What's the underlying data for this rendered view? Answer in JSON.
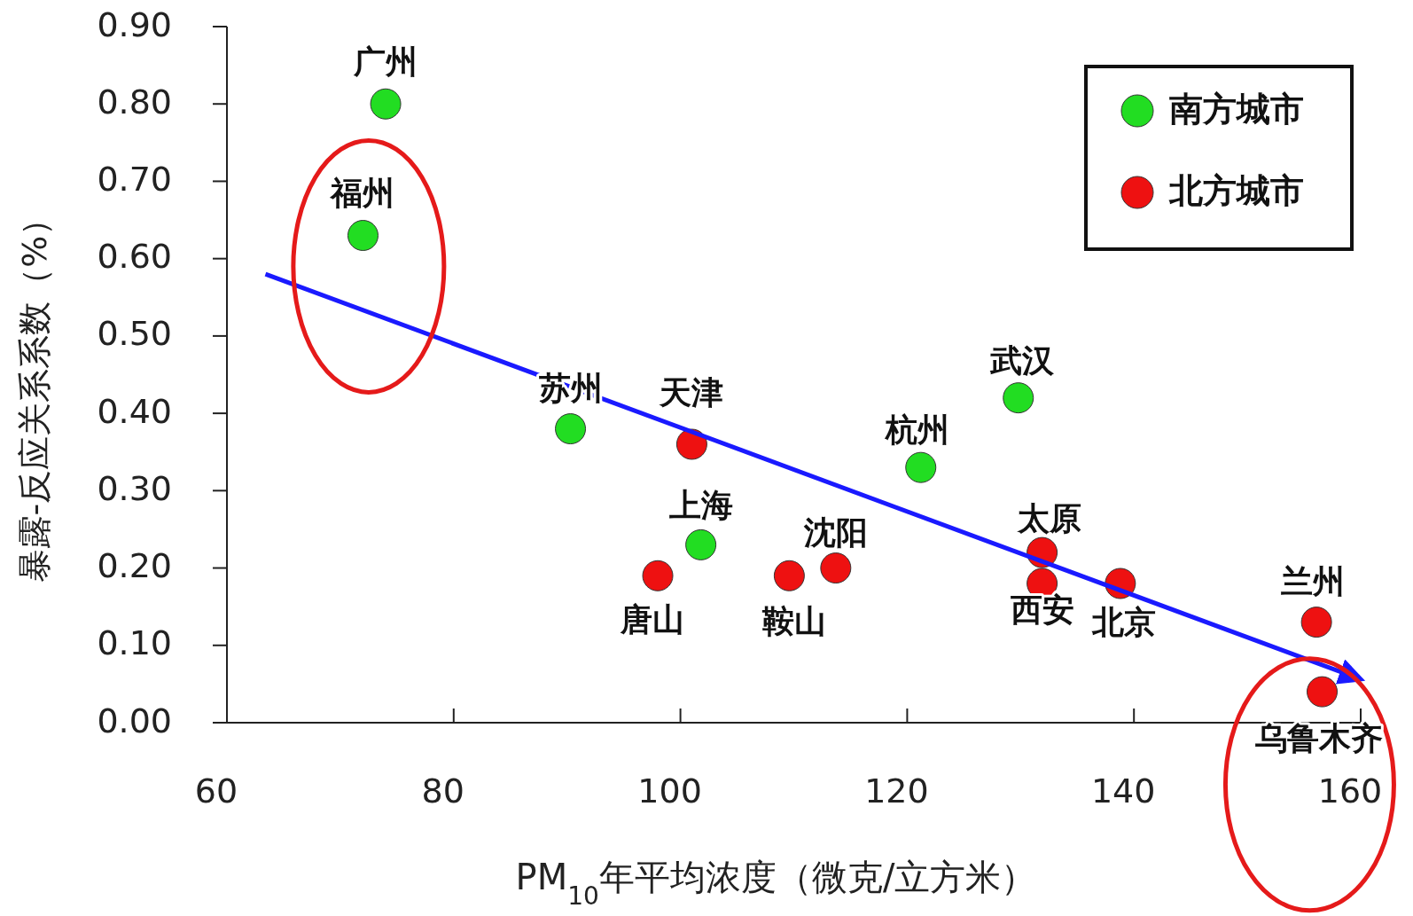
{
  "chart_data": {
    "type": "scatter",
    "xlabel": "PM$_{10}$年平均浓度（微克/立方米）",
    "ylabel": "暴露-反应关系系数（%）",
    "xlim": [
      60,
      160
    ],
    "xticks": [
      60,
      80,
      100,
      120,
      140,
      160
    ],
    "ylim": [
      0,
      0.9
    ],
    "yticks": [
      {
        "value": 0,
        "label": "0.00"
      },
      {
        "value": 0.1,
        "label": "0.10"
      },
      {
        "value": 0.2,
        "label": "0.20"
      },
      {
        "value": 0.3,
        "label": "0.30"
      },
      {
        "value": 0.4,
        "label": "0.40"
      },
      {
        "value": 0.5,
        "label": "0.50"
      },
      {
        "value": 0.6,
        "label": "0.60"
      },
      {
        "value": 0.7,
        "label": "0.70"
      },
      {
        "value": 0.8,
        "label": "0.80"
      },
      {
        "value": 0.9,
        "label": "0.90"
      }
    ],
    "grid": false,
    "legend": "top right",
    "marker": "circle",
    "series": [
      {
        "name": "南方城市",
        "color": "#22dd22",
        "x": [
          74.0,
          72.0,
          90.3,
          101.8,
          121.2,
          129.8
        ],
        "values": [
          0.8,
          0.63,
          0.38,
          0.23,
          0.33,
          0.42
        ]
      },
      {
        "name": "北方城市",
        "color": "#ee1111",
        "x": [
          101.0,
          98.0,
          109.6,
          113.7,
          131.9,
          131.9,
          138.8,
          156.1,
          156.6
        ],
        "values": [
          0.36,
          0.19,
          0.19,
          0.2,
          0.22,
          0.18,
          0.18,
          0.13,
          0.04
        ]
      },
      {
        "type": "line",
        "marker": "none",
        "color": "#1a1aff",
        "x": [
          63.4,
          159.3
        ],
        "values": [
          0.58,
          0.06
        ]
      }
    ],
    "annotations": [
      {
        "text": "广州",
        "x": 74.0,
        "y": 0.8
      },
      {
        "text": "福州",
        "x": 72.0,
        "y": 0.63
      },
      {
        "text": "苏州",
        "x": 90.3,
        "y": 0.38
      },
      {
        "text": "上海",
        "x": 101.8,
        "y": 0.23
      },
      {
        "text": "杭州",
        "x": 121.2,
        "y": 0.33
      },
      {
        "text": "武汉",
        "x": 129.8,
        "y": 0.42
      },
      {
        "text": "天津",
        "x": 101.0,
        "y": 0.36
      },
      {
        "text": "唐山",
        "x": 98.0,
        "y": 0.19
      },
      {
        "text": "鞍山",
        "x": 109.6,
        "y": 0.19
      },
      {
        "text": "沈阳",
        "x": 113.7,
        "y": 0.2
      },
      {
        "text": "太原",
        "x": 131.9,
        "y": 0.22
      },
      {
        "text": "西安",
        "x": 131.9,
        "y": 0.18
      },
      {
        "text": "北京",
        "x": 138.8,
        "y": 0.18
      },
      {
        "text": "兰州",
        "x": 156.1,
        "y": 0.13
      },
      {
        "text": "乌鲁木齐",
        "x": 156.6,
        "y": 0.04
      }
    ]
  }
}
